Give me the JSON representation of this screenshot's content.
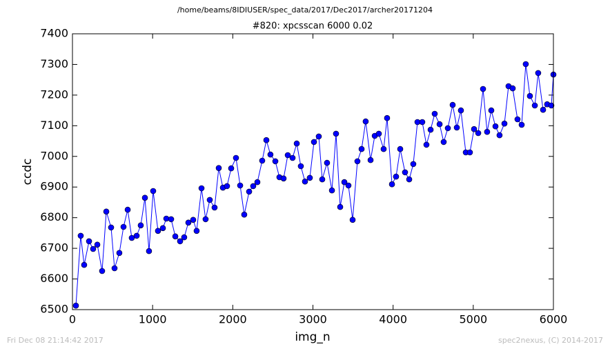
{
  "chart_data": {
    "type": "line",
    "title": "/home/beams/8IDIUSER/spec_data/2017/Dec2017/archer20171204",
    "subtitle": "#820: xpcsscan 6000 0.02",
    "x_label": "img_n",
    "y_label": "ccdc",
    "annotations": [
      "Fri Dec 08 21:14:42 2017",
      "spec2nexus, (C) 2014-2017"
    ],
    "color": "#0000ff",
    "marker_color": "#0000ff",
    "xlim": [
      0,
      6000
    ],
    "xticks": [
      0,
      1000,
      2000,
      3000,
      4000,
      5000,
      6000
    ],
    "ylim": [
      6500,
      7400
    ],
    "yticks": [
      6500,
      6600,
      6700,
      6800,
      6900,
      7000,
      7100,
      7200,
      7300,
      7400
    ],
    "grid": false,
    "x": [
      43,
      103,
      146,
      207,
      258,
      310,
      370,
      422,
      482,
      525,
      585,
      637,
      689,
      740,
      801,
      852,
      904,
      955,
      1007,
      1067,
      1128,
      1171,
      1231,
      1283,
      1343,
      1394,
      1446,
      1506,
      1549,
      1610,
      1661,
      1713,
      1773,
      1825,
      1877,
      1928,
      1980,
      2040,
      2092,
      2143,
      2204,
      2255,
      2307,
      2367,
      2419,
      2470,
      2531,
      2582,
      2634,
      2686,
      2746,
      2798,
      2849,
      2901,
      2961,
      3013,
      3073,
      3116,
      3176,
      3237,
      3288,
      3340,
      3392,
      3443,
      3495,
      3555,
      3607,
      3658,
      3719,
      3771,
      3822,
      3882,
      3925,
      3986,
      4037,
      4089,
      4149,
      4201,
      4252,
      4304,
      4364,
      4416,
      4468,
      4519,
      4580,
      4631,
      4683,
      4743,
      4795,
      4846,
      4907,
      4958,
      5010,
      5062,
      5122,
      5173,
      5225,
      5277,
      5328,
      5389,
      5440,
      5492,
      5552,
      5604,
      5655,
      5707,
      5768,
      5810,
      5871,
      5922,
      5974,
      6000
    ],
    "values": [
      6513,
      6741,
      6646,
      6723,
      6698,
      6712,
      6626,
      6820,
      6768,
      6635,
      6685,
      6770,
      6826,
      6734,
      6741,
      6775,
      6865,
      6691,
      6887,
      6757,
      6766,
      6797,
      6795,
      6739,
      6723,
      6736,
      6784,
      6793,
      6757,
      6896,
      6795,
      6858,
      6833,
      6962,
      6898,
      6903,
      6961,
      6995,
      6905,
      6810,
      6885,
      6903,
      6916,
      6986,
      7053,
      7006,
      6984,
      6932,
      6928,
      7004,
      6995,
      7042,
      6968,
      6918,
      6930,
      7047,
      7065,
      6925,
      6979,
      6889,
      7074,
      6835,
      6916,
      6905,
      6793,
      6984,
      7024,
      7114,
      6988,
      7067,
      7074,
      7024,
      7125,
      6909,
      6934,
      7024,
      6948,
      6925,
      6975,
      7112,
      7112,
      7038,
      7087,
      7139,
      7105,
      7047,
      7092,
      7168,
      7094,
      7150,
      7013,
      7013,
      7089,
      7076,
      7220,
      7080,
      7150,
      7098,
      7069,
      7107,
      7229,
      7222,
      7121,
      7103,
      7301,
      7197,
      7166,
      7272,
      7152,
      7170,
      7166,
      7267
    ]
  }
}
